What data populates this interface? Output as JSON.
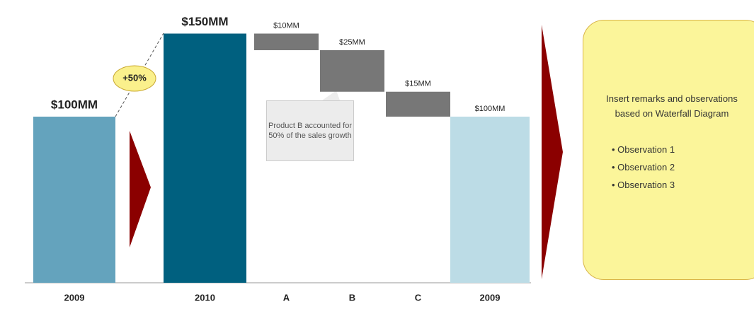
{
  "chart_data": {
    "type": "waterfall",
    "categories": [
      "2009",
      "2010",
      "A",
      "B",
      "C",
      "2009"
    ],
    "values": [
      100,
      150,
      10,
      25,
      15,
      100
    ],
    "value_labels": [
      "$100MM",
      "$150MM",
      "$10MM",
      "$25MM",
      "$15MM",
      "$100MM"
    ],
    "measure": [
      "total",
      "total",
      "decrease",
      "decrease",
      "decrease",
      "total"
    ],
    "colors": [
      "#64a3bd",
      "#00607f",
      "#777777",
      "#777777",
      "#777777",
      "#bcdce6"
    ],
    "annotations": [
      "+50%",
      "Product B accounted for 50% of the sales growth"
    ]
  },
  "remarks": {
    "text": "Insert remarks and observations based on Waterfall Diagram",
    "observations": [
      "Observation 1",
      "Observation 2",
      "Observation 3"
    ]
  }
}
